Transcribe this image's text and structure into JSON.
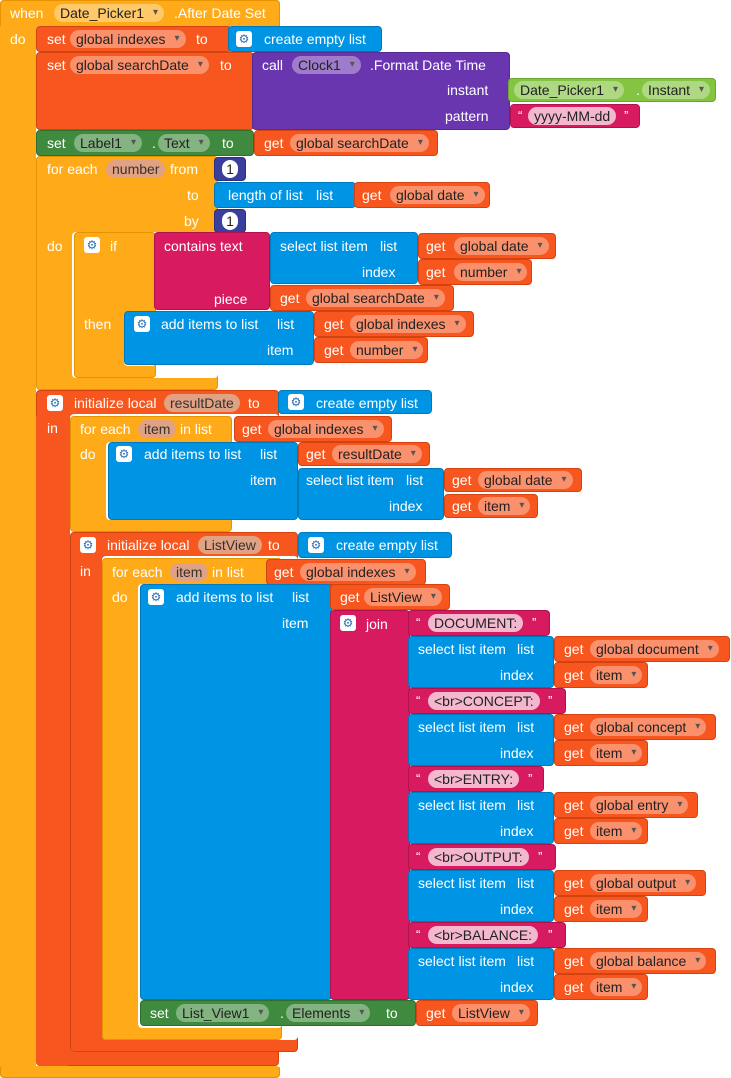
{
  "when_label": "when",
  "date_picker_component": "Date_Picker1",
  "after_date_set": ".After Date Set",
  "do_label": "do",
  "set_label": "set",
  "to_label": "to",
  "get_label": "get",
  "global_indexes": "global indexes",
  "global_search_date": "global searchDate",
  "global_date": "global date",
  "global_document": "global document",
  "global_concept": "global concept",
  "global_entry": "global entry",
  "global_output": "global output",
  "global_balance": "global balance",
  "create_empty_list": "create empty list",
  "call_label": "call",
  "clock_component": "Clock1",
  "format_date_time": ".Format Date Time",
  "instant_label": "instant",
  "pattern_label": "pattern",
  "date_picker_instant": "Instant",
  "dot": ".",
  "pattern_value": "yyyy-MM-dd",
  "quote_open": "“",
  "quote_close": "”",
  "label_component": "Label1",
  "text_property": "Text",
  "for_each_label": "for each",
  "number_var": "number",
  "from_label": "from",
  "by_label": "by",
  "one_value": "1",
  "length_of_list": "length of list",
  "list_label": "list",
  "if_label": "if",
  "then_label": "then",
  "contains_text": "contains text",
  "piece_label": "piece",
  "select_list_item": "select list item",
  "index_label": "index",
  "item_label": "item",
  "add_items_to_list": "add items to list",
  "initialize_local": "initialize local",
  "result_date": "resultDate",
  "list_view_var": "ListView",
  "in_label": "in",
  "in_list_label": "in list",
  "join_label": "join",
  "str_document": "DOCUMENT:",
  "str_concept": "<br>CONCEPT:",
  "str_entry": "<br>ENTRY:",
  "str_output": "<br>OUTPUT:",
  "str_balance": "<br>BALANCE:",
  "list_view_component": "List_View1",
  "elements_property": "Elements",
  "colors": {
    "control": "#ffab19",
    "variable": "#f7561e",
    "procedure": "#6a36b0",
    "component_set": "#3f8a3e",
    "component_get": "#83c440",
    "text": "#d81b60",
    "list": "#0095e4",
    "math": "#3a3f9e"
  }
}
